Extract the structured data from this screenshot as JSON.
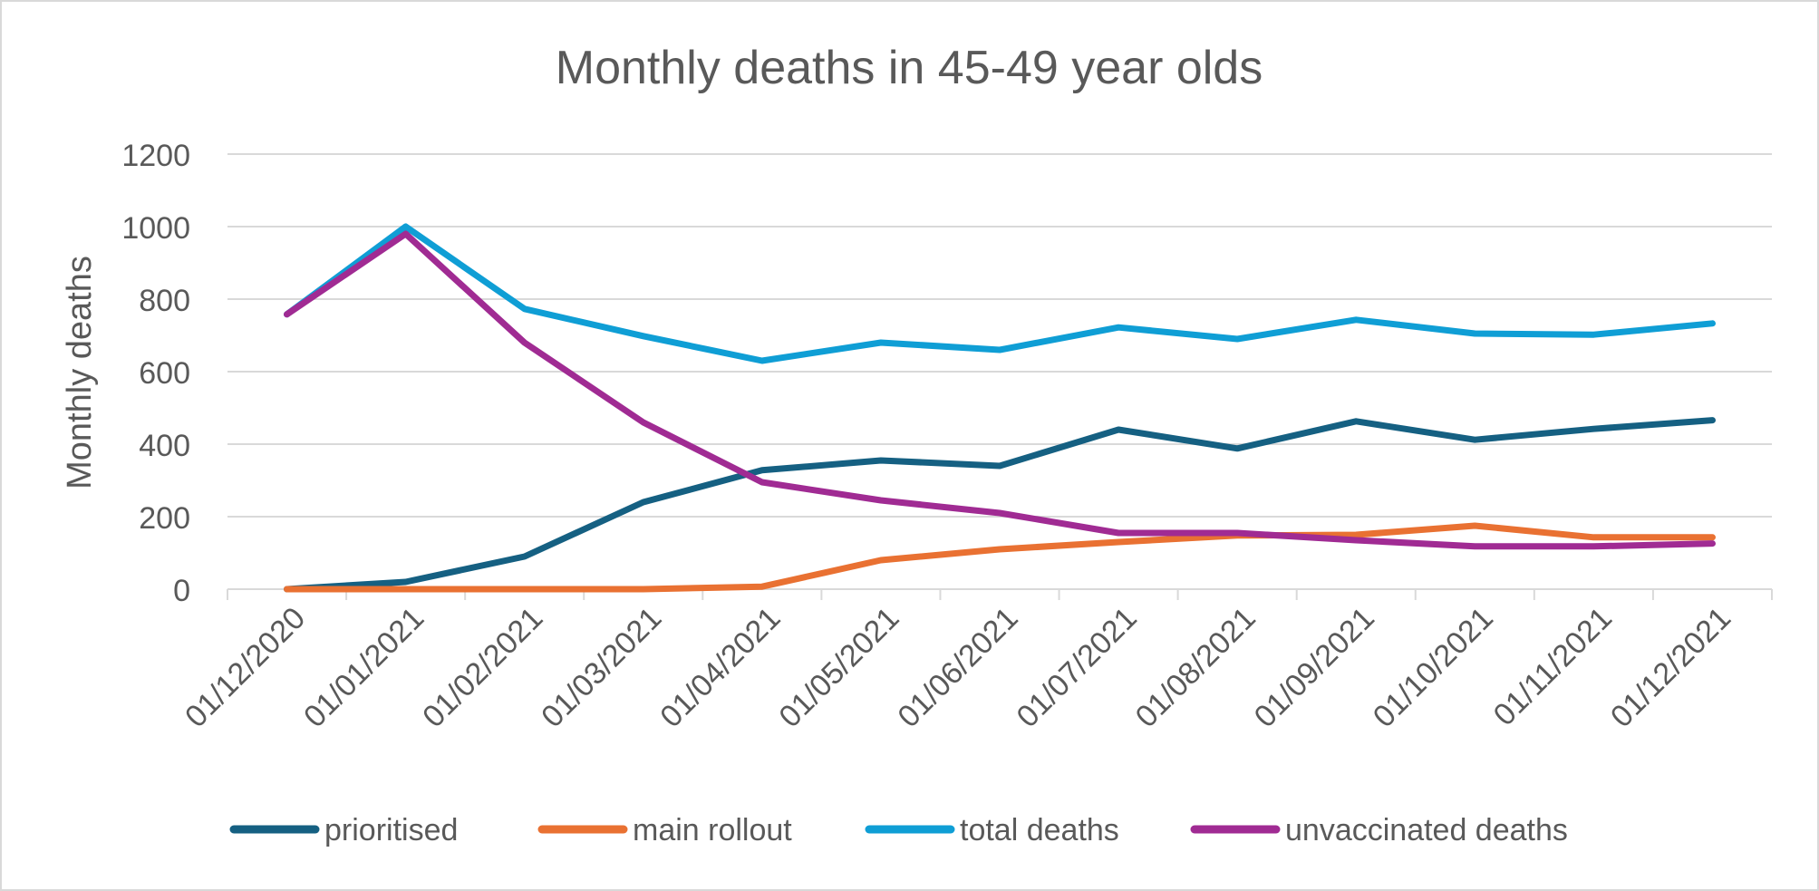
{
  "chart_data": {
    "type": "line",
    "title": "Monthly deaths in 45-49 year olds",
    "xlabel": "",
    "ylabel": "Monthly deaths",
    "ylim": [
      0,
      1200
    ],
    "yticks": [
      0,
      200,
      400,
      600,
      800,
      1000,
      1200
    ],
    "grid": true,
    "legend_position": "bottom",
    "categories": [
      "01/12/2020",
      "01/01/2021",
      "01/02/2021",
      "01/03/2021",
      "01/04/2021",
      "01/05/2021",
      "01/06/2021",
      "01/07/2021",
      "01/08/2021",
      "01/09/2021",
      "01/10/2021",
      "01/11/2021",
      "01/12/2021"
    ],
    "series": [
      {
        "name": "prioritised",
        "color": "#156082",
        "values": [
          0,
          20,
          90,
          240,
          328,
          355,
          340,
          440,
          388,
          463,
          412,
          442,
          466
        ]
      },
      {
        "name": "main rollout",
        "color": "#E97132",
        "values": [
          0,
          0,
          0,
          0,
          7,
          80,
          110,
          130,
          148,
          150,
          175,
          143,
          143
        ]
      },
      {
        "name": "total deaths",
        "color": "#0F9ED5",
        "values": [
          758,
          1000,
          773,
          698,
          630,
          680,
          660,
          722,
          690,
          743,
          705,
          702,
          733
        ]
      },
      {
        "name": "unvaccinated deaths",
        "color": "#A02B93",
        "values": [
          758,
          980,
          680,
          460,
          295,
          245,
          210,
          155,
          155,
          135,
          118,
          118,
          126
        ]
      }
    ]
  }
}
